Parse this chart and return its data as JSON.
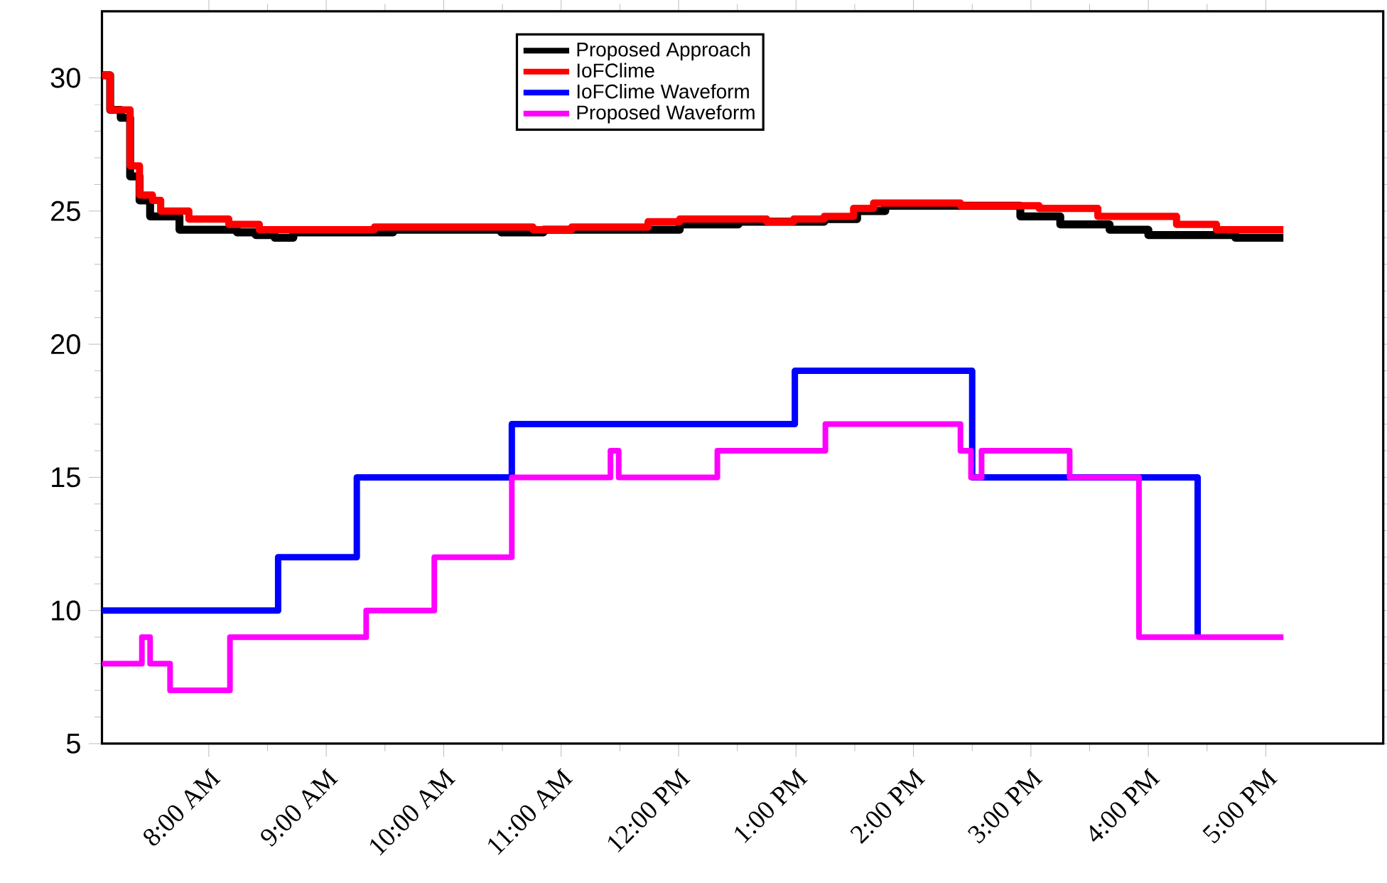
{
  "chart_data": {
    "type": "step",
    "xlim": [
      7.09,
      18.0
    ],
    "ylim": [
      5,
      32.5
    ],
    "xticks": [
      {
        "value": 8,
        "label": "8:00 AM"
      },
      {
        "value": 9,
        "label": "9:00 AM"
      },
      {
        "value": 10,
        "label": "10:00 AM"
      },
      {
        "value": 11,
        "label": "11:00 AM"
      },
      {
        "value": 12,
        "label": "12:00 PM"
      },
      {
        "value": 13,
        "label": "1:00 PM"
      },
      {
        "value": 14,
        "label": "2:00 PM"
      },
      {
        "value": 15,
        "label": "3:00 PM"
      },
      {
        "value": 16,
        "label": "4:00 PM"
      },
      {
        "value": 17,
        "label": "5:00 PM"
      }
    ],
    "yticks": [
      5,
      10,
      15,
      20,
      25,
      30
    ],
    "legend": "top",
    "grid": false,
    "marker": "none",
    "line_style": "solid",
    "series": [
      {
        "name": "Proposed Approach",
        "color": "#000000",
        "x": [
          7.09,
          7.16,
          7.25,
          7.33,
          7.41,
          7.5,
          7.75,
          8.24,
          8.4,
          8.56,
          8.72,
          9.57,
          10.49,
          10.85,
          12.01,
          12.51,
          13.24,
          13.52,
          13.76,
          14.91,
          15.25,
          15.67,
          16.0,
          16.74,
          17.15
        ],
        "values": [
          30.1,
          28.8,
          28.5,
          26.3,
          25.4,
          24.8,
          24.3,
          24.2,
          24.1,
          24.0,
          24.2,
          24.3,
          24.2,
          24.3,
          24.5,
          24.6,
          24.7,
          25.0,
          25.2,
          24.8,
          24.5,
          24.3,
          24.1,
          24.0,
          24.0
        ]
      },
      {
        "name": "IoFClime",
        "color": "#ff0000",
        "x": [
          7.09,
          7.16,
          7.33,
          7.41,
          7.52,
          7.59,
          7.83,
          8.17,
          8.43,
          9.41,
          10.76,
          11.09,
          11.74,
          12.01,
          12.75,
          12.98,
          13.24,
          13.49,
          13.66,
          14.4,
          15.07,
          15.57,
          16.24,
          16.58,
          17.15
        ],
        "values": [
          30.1,
          28.8,
          26.7,
          25.6,
          25.4,
          25.0,
          24.7,
          24.5,
          24.3,
          24.4,
          24.3,
          24.4,
          24.6,
          24.7,
          24.6,
          24.7,
          24.8,
          25.1,
          25.3,
          25.2,
          25.1,
          24.8,
          24.5,
          24.3,
          24.3
        ]
      },
      {
        "name": "IoFClime Waveform",
        "color": "#0000ff",
        "x": [
          7.09,
          8.59,
          9.26,
          10.58,
          12.99,
          14.5,
          16.42
        ],
        "values": [
          10,
          12,
          15,
          17,
          19,
          15,
          9
        ]
      },
      {
        "name": "Proposed Waveform",
        "color": "#ff00ff",
        "x": [
          7.09,
          7.43,
          7.5,
          7.67,
          8.18,
          9.34,
          9.92,
          10.58,
          11.42,
          11.49,
          12.33,
          13.25,
          14.4,
          14.49,
          14.58,
          15.33,
          15.92,
          17.15
        ],
        "values": [
          8,
          9,
          8,
          7,
          9,
          10,
          12,
          15,
          16,
          15,
          16,
          17,
          16,
          15,
          16,
          15,
          9,
          9
        ]
      }
    ]
  }
}
